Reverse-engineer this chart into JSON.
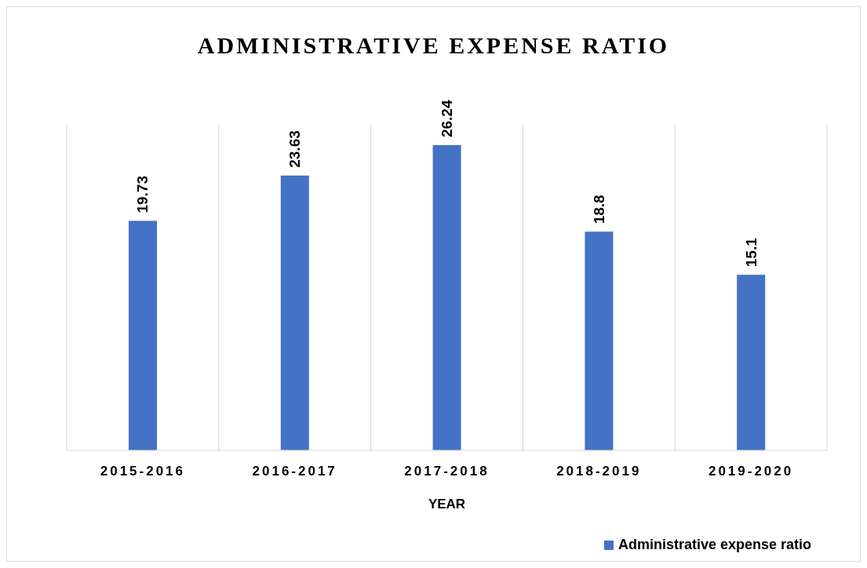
{
  "chart_data": {
    "type": "bar",
    "title": "ADMINISTRATIVE EXPENSE RATIO",
    "xlabel": "YEAR",
    "categories": [
      "2015-2016",
      "2016-2017",
      "2017-2018",
      "2018-2019",
      "2019-2020"
    ],
    "series": [
      {
        "name": "Administrative expense ratio",
        "color": "#4472c4",
        "values": [
          19.73,
          23.63,
          26.24,
          18.8,
          15.1
        ]
      }
    ],
    "data_labels": true,
    "grid": "x",
    "legend": "bottom right"
  }
}
